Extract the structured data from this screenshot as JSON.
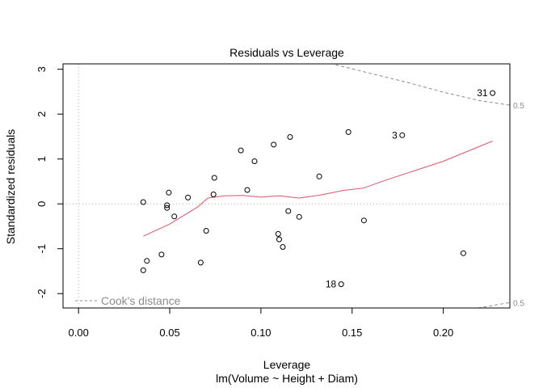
{
  "chart_data": {
    "type": "scatter",
    "title": "Residuals vs Leverage",
    "xlabel": "Leverage",
    "subtitle": "lm(Volume ~ Height + Diam)",
    "ylabel": "Standardized residuals",
    "xlim": [
      -0.0085,
      0.2365
    ],
    "ylim": [
      -2.32,
      3.12
    ],
    "xticks": [
      0.0,
      0.05,
      0.1,
      0.15,
      0.2
    ],
    "xtick_labels": [
      "0.00",
      "0.05",
      "0.10",
      "0.15",
      "0.20"
    ],
    "yticks": [
      -2,
      -1,
      0,
      1,
      2,
      3
    ],
    "ytick_labels": [
      "-2",
      "-1",
      "0",
      "1",
      "2",
      "3"
    ],
    "points": [
      {
        "x": 0.0355,
        "y": 0.04
      },
      {
        "x": 0.0355,
        "y": -1.48
      },
      {
        "x": 0.0375,
        "y": -1.27
      },
      {
        "x": 0.0455,
        "y": -1.13
      },
      {
        "x": 0.0485,
        "y": -0.03
      },
      {
        "x": 0.0485,
        "y": -0.09
      },
      {
        "x": 0.0495,
        "y": 0.25
      },
      {
        "x": 0.0525,
        "y": -0.28
      },
      {
        "x": 0.06,
        "y": 0.14
      },
      {
        "x": 0.067,
        "y": -1.31
      },
      {
        "x": 0.07,
        "y": -0.6
      },
      {
        "x": 0.074,
        "y": 0.21
      },
      {
        "x": 0.0745,
        "y": 0.58
      },
      {
        "x": 0.089,
        "y": 1.19
      },
      {
        "x": 0.0925,
        "y": 0.31
      },
      {
        "x": 0.0965,
        "y": 0.95
      },
      {
        "x": 0.107,
        "y": 1.32
      },
      {
        "x": 0.1095,
        "y": -0.67
      },
      {
        "x": 0.11,
        "y": -0.79
      },
      {
        "x": 0.112,
        "y": -0.96
      },
      {
        "x": 0.115,
        "y": -0.16
      },
      {
        "x": 0.116,
        "y": 1.49
      },
      {
        "x": 0.121,
        "y": -0.29
      },
      {
        "x": 0.132,
        "y": 0.61
      },
      {
        "x": 0.144,
        "y": -1.79,
        "label": "18"
      },
      {
        "x": 0.148,
        "y": 1.6
      },
      {
        "x": 0.1565,
        "y": -0.37
      },
      {
        "x": 0.1775,
        "y": 1.53,
        "label": "3"
      },
      {
        "x": 0.211,
        "y": -1.1
      },
      {
        "x": 0.227,
        "y": 2.47,
        "label": "31"
      }
    ],
    "smoother": {
      "x": [
        0.0355,
        0.05,
        0.065,
        0.071,
        0.08,
        0.09,
        0.1,
        0.11,
        0.121,
        0.133,
        0.145,
        0.156,
        0.17,
        0.185,
        0.2,
        0.215,
        0.227
      ],
      "y": [
        -0.72,
        -0.45,
        -0.08,
        0.13,
        0.18,
        0.19,
        0.15,
        0.18,
        0.13,
        0.2,
        0.3,
        0.35,
        0.55,
        0.75,
        0.95,
        1.2,
        1.4
      ],
      "color": "#df536b"
    },
    "cooks_distance": {
      "label": "0.5",
      "color": "#8c8c8c",
      "upper": {
        "x": [
          0.141,
          0.16,
          0.18,
          0.2,
          0.22,
          0.2365
        ],
        "y": [
          3.1,
          2.91,
          2.71,
          2.49,
          2.3,
          2.2
        ]
      },
      "lower": {
        "x": [
          0.219,
          0.2365
        ],
        "y": [
          -2.32,
          -2.2
        ]
      }
    },
    "legend": {
      "entries": [
        "Cook's distance"
      ],
      "position": "bottom-left"
    },
    "reference_lines": {
      "h": 0,
      "v": 0,
      "color": "#b0b0b0"
    },
    "point_color": "#000000"
  }
}
